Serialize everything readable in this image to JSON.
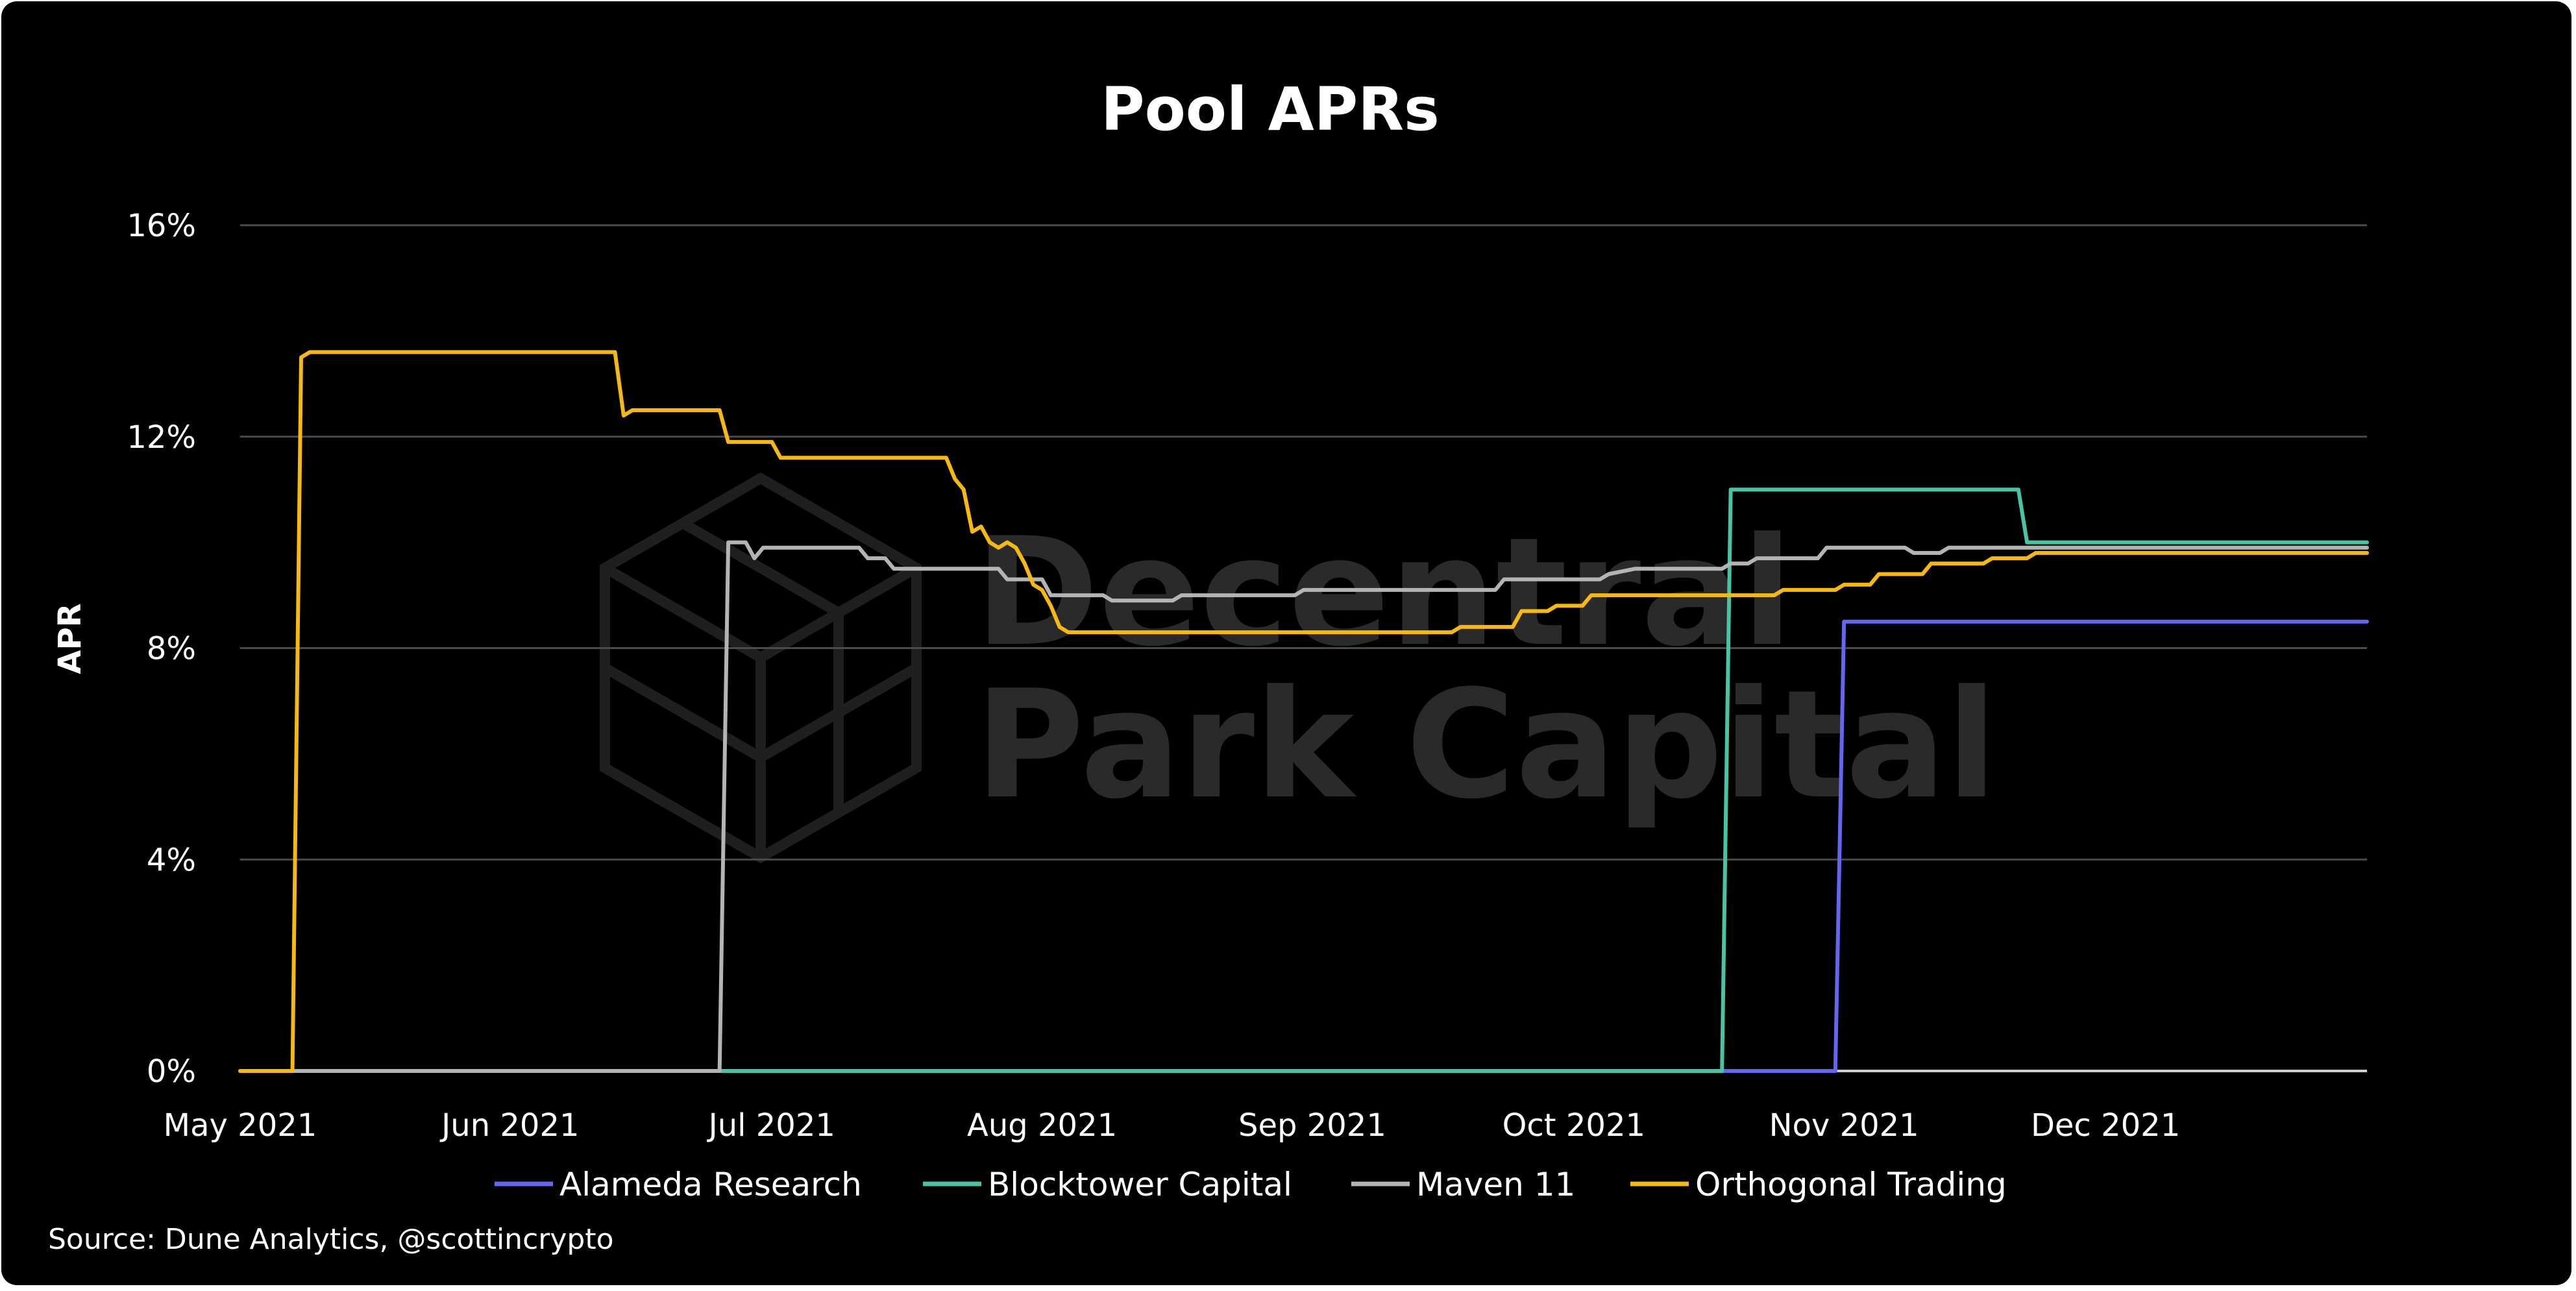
{
  "chart_data": {
    "type": "line",
    "title": "Pool APRs",
    "ylabel": "APR",
    "xlabel": "",
    "ylim": [
      0,
      16
    ],
    "yticks": [
      "0%",
      "4%",
      "8%",
      "12%",
      "16%"
    ],
    "xlim": [
      "2021-05-01",
      "2021-12-31"
    ],
    "xticks": [
      {
        "date": "2021-05-01",
        "label": "May 2021"
      },
      {
        "date": "2021-06-01",
        "label": "Jun 2021"
      },
      {
        "date": "2021-07-01",
        "label": "Jul 2021"
      },
      {
        "date": "2021-08-01",
        "label": "Aug 2021"
      },
      {
        "date": "2021-09-01",
        "label": "Sep 2021"
      },
      {
        "date": "2021-10-01",
        "label": "Oct 2021"
      },
      {
        "date": "2021-11-01",
        "label": "Nov 2021"
      },
      {
        "date": "2021-12-01",
        "label": "Dec 2021"
      }
    ],
    "grid": true,
    "legend_position": "bottom",
    "series": [
      {
        "name": "Alameda Research",
        "color": "#6466f1",
        "points": [
          [
            "2021-10-18",
            0
          ],
          [
            "2021-10-31",
            0
          ],
          [
            "2021-11-01",
            8.5
          ],
          [
            "2021-11-02",
            8.5
          ],
          [
            "2021-12-31",
            8.5
          ]
        ]
      },
      {
        "name": "Blocktower Capital",
        "color": "#48c4a4",
        "points": [
          [
            "2021-06-25",
            0
          ],
          [
            "2021-10-18",
            0
          ],
          [
            "2021-10-19",
            11.0
          ],
          [
            "2021-10-20",
            11.0
          ],
          [
            "2021-11-20",
            11.0
          ],
          [
            "2021-11-21",
            11.0
          ],
          [
            "2021-11-22",
            10.0
          ],
          [
            "2021-12-31",
            10.0
          ]
        ]
      },
      {
        "name": "Maven 11",
        "color": "#b4b4b4",
        "points": [
          [
            "2021-05-07",
            0
          ],
          [
            "2021-06-25",
            0
          ],
          [
            "2021-06-26",
            10.0
          ],
          [
            "2021-06-28",
            10.0
          ],
          [
            "2021-06-29",
            9.7
          ],
          [
            "2021-06-30",
            9.9
          ],
          [
            "2021-07-11",
            9.9
          ],
          [
            "2021-07-12",
            9.7
          ],
          [
            "2021-07-14",
            9.7
          ],
          [
            "2021-07-15",
            9.5
          ],
          [
            "2021-07-27",
            9.5
          ],
          [
            "2021-07-28",
            9.3
          ],
          [
            "2021-08-01",
            9.3
          ],
          [
            "2021-08-02",
            9.0
          ],
          [
            "2021-08-08",
            9.0
          ],
          [
            "2021-08-09",
            8.9
          ],
          [
            "2021-08-16",
            8.9
          ],
          [
            "2021-08-17",
            9.0
          ],
          [
            "2021-08-30",
            9.0
          ],
          [
            "2021-08-31",
            9.1
          ],
          [
            "2021-09-22",
            9.1
          ],
          [
            "2021-09-23",
            9.3
          ],
          [
            "2021-10-04",
            9.3
          ],
          [
            "2021-10-05",
            9.4
          ],
          [
            "2021-10-08",
            9.5
          ],
          [
            "2021-10-18",
            9.5
          ],
          [
            "2021-10-19",
            9.6
          ],
          [
            "2021-10-21",
            9.6
          ],
          [
            "2021-10-22",
            9.7
          ],
          [
            "2021-10-29",
            9.7
          ],
          [
            "2021-10-30",
            9.9
          ],
          [
            "2021-11-08",
            9.9
          ],
          [
            "2021-11-09",
            9.8
          ],
          [
            "2021-11-12",
            9.8
          ],
          [
            "2021-11-13",
            9.9
          ],
          [
            "2021-12-31",
            9.9
          ]
        ]
      },
      {
        "name": "Orthogonal Trading",
        "color": "#f5b912",
        "points": [
          [
            "2021-05-01",
            0
          ],
          [
            "2021-05-07",
            0
          ],
          [
            "2021-05-08",
            13.5
          ],
          [
            "2021-05-09",
            13.6
          ],
          [
            "2021-06-12",
            13.6
          ],
          [
            "2021-06-13",
            13.6
          ],
          [
            "2021-06-14",
            12.4
          ],
          [
            "2021-06-15",
            12.5
          ],
          [
            "2021-06-24",
            12.5
          ],
          [
            "2021-06-25",
            12.5
          ],
          [
            "2021-06-26",
            11.9
          ],
          [
            "2021-06-27",
            11.9
          ],
          [
            "2021-06-30",
            11.9
          ],
          [
            "2021-07-01",
            11.9
          ],
          [
            "2021-07-02",
            11.6
          ],
          [
            "2021-07-20",
            11.6
          ],
          [
            "2021-07-21",
            11.6
          ],
          [
            "2021-07-22",
            11.2
          ],
          [
            "2021-07-23",
            11.0
          ],
          [
            "2021-07-24",
            10.2
          ],
          [
            "2021-07-25",
            10.3
          ],
          [
            "2021-07-26",
            10.0
          ],
          [
            "2021-07-27",
            9.9
          ],
          [
            "2021-07-28",
            10.0
          ],
          [
            "2021-07-29",
            9.9
          ],
          [
            "2021-07-30",
            9.6
          ],
          [
            "2021-07-31",
            9.2
          ],
          [
            "2021-08-01",
            9.1
          ],
          [
            "2021-08-02",
            8.8
          ],
          [
            "2021-08-03",
            8.4
          ],
          [
            "2021-08-04",
            8.3
          ],
          [
            "2021-09-17",
            8.3
          ],
          [
            "2021-09-18",
            8.4
          ],
          [
            "2021-09-24",
            8.4
          ],
          [
            "2021-09-25",
            8.7
          ],
          [
            "2021-09-28",
            8.7
          ],
          [
            "2021-09-29",
            8.8
          ],
          [
            "2021-10-02",
            8.8
          ],
          [
            "2021-10-03",
            9.0
          ],
          [
            "2021-10-24",
            9.0
          ],
          [
            "2021-10-25",
            9.1
          ],
          [
            "2021-10-31",
            9.1
          ],
          [
            "2021-11-01",
            9.2
          ],
          [
            "2021-11-04",
            9.2
          ],
          [
            "2021-11-05",
            9.4
          ],
          [
            "2021-11-10",
            9.4
          ],
          [
            "2021-11-11",
            9.6
          ],
          [
            "2021-11-17",
            9.6
          ],
          [
            "2021-11-18",
            9.7
          ],
          [
            "2021-11-22",
            9.7
          ],
          [
            "2021-11-23",
            9.8
          ],
          [
            "2021-12-31",
            9.8
          ]
        ]
      }
    ],
    "source": "Source: Dune Analytics, @scottincrypto",
    "watermark": [
      "Decentral",
      "Park Capital"
    ]
  }
}
